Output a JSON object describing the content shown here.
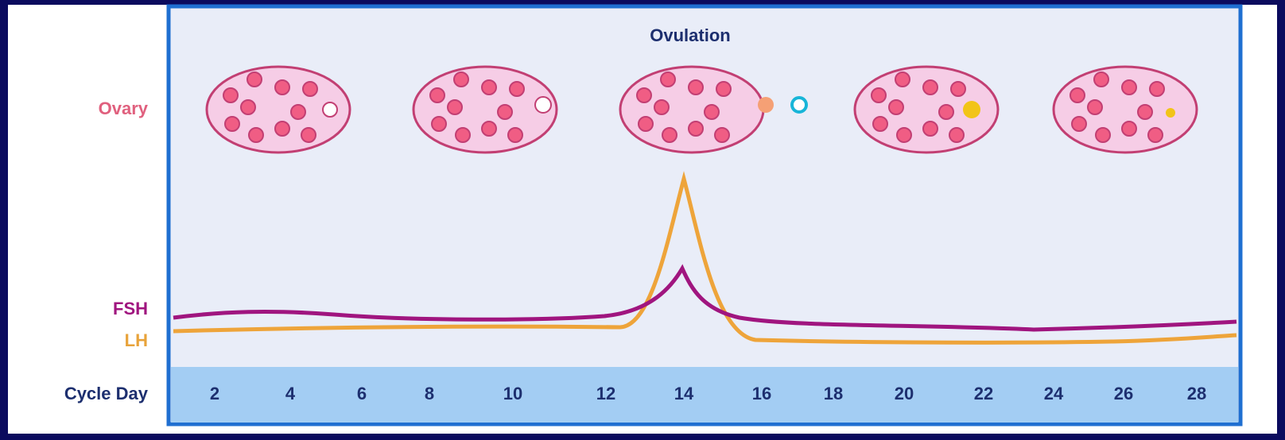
{
  "title": "Ovulation",
  "row_labels": {
    "ovary": "Ovary",
    "fsh": "FSH",
    "lh": "LH",
    "cycle_day": "Cycle Day"
  },
  "days": [
    "2",
    "4",
    "6",
    "8",
    "10",
    "12",
    "14",
    "16",
    "18",
    "20",
    "22",
    "24",
    "26",
    "28"
  ]
}
